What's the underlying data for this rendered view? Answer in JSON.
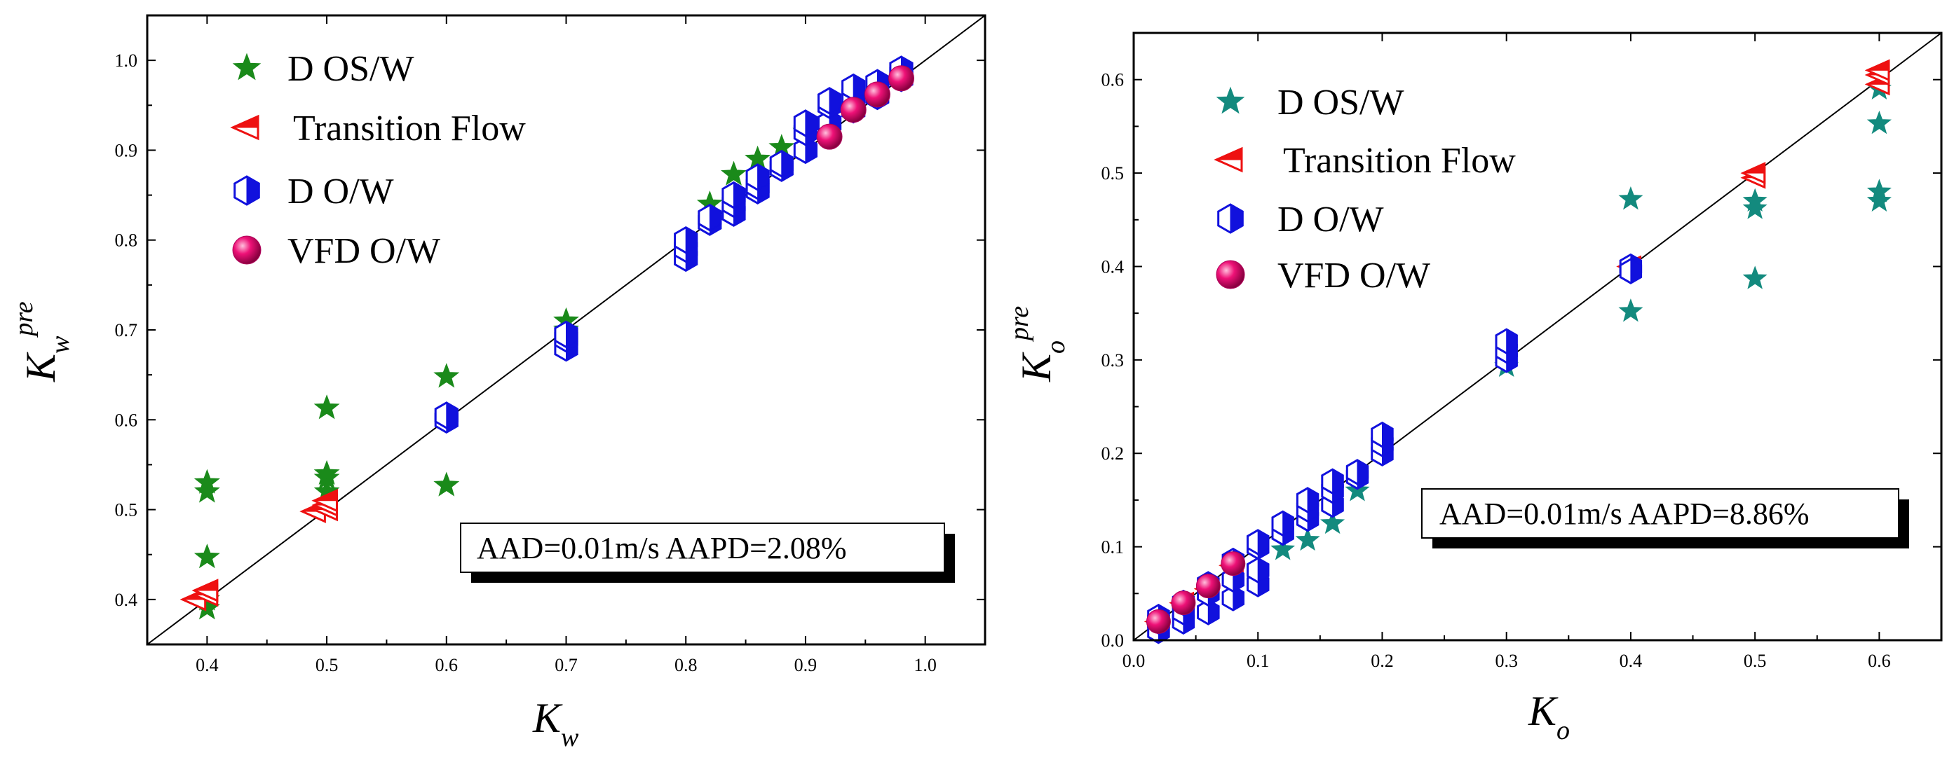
{
  "chart_data": [
    {
      "type": "scatter",
      "xlabel": "K_w",
      "ylabel": "K_w^pre",
      "axis_symbol": "K",
      "axis_subscript": "w",
      "ylabel_superscript": "pre",
      "xlim": [
        0.35,
        1.05
      ],
      "ylim": [
        0.35,
        1.05
      ],
      "xticks": [
        "0.4",
        "0.5",
        "0.6",
        "0.7",
        "0.8",
        "0.9",
        "1.0"
      ],
      "yticks": [
        "0.4",
        "0.5",
        "0.6",
        "0.7",
        "0.8",
        "0.9",
        "1.0"
      ],
      "stats_text": "AAD=0.01m/s  AAPD=2.08%",
      "series": [
        {
          "name": "D OS/W",
          "marker": "star",
          "color": "#1a8a1a",
          "points": [
            [
              0.4,
              0.39
            ],
            [
              0.4,
              0.4
            ],
            [
              0.4,
              0.447
            ],
            [
              0.4,
              0.52
            ],
            [
              0.4,
              0.53
            ],
            [
              0.5,
              0.52
            ],
            [
              0.5,
              0.535
            ],
            [
              0.5,
              0.54
            ],
            [
              0.5,
              0.613
            ],
            [
              0.6,
              0.527
            ],
            [
              0.6,
              0.648
            ],
            [
              0.7,
              0.7
            ],
            [
              0.7,
              0.71
            ],
            [
              0.82,
              0.84
            ],
            [
              0.84,
              0.873
            ],
            [
              0.86,
              0.89
            ],
            [
              0.88,
              0.903
            ],
            [
              0.9,
              0.92
            ]
          ]
        },
        {
          "name": "Transition Flow",
          "marker": "triangle-left",
          "color": "#ee1111",
          "points": [
            [
              0.39,
              0.4
            ],
            [
              0.4,
              0.405
            ],
            [
              0.4,
              0.41
            ],
            [
              0.4,
              0.41
            ],
            [
              0.49,
              0.498
            ],
            [
              0.5,
              0.5
            ],
            [
              0.5,
              0.505
            ],
            [
              0.5,
              0.51
            ]
          ]
        },
        {
          "name": "D O/W",
          "marker": "hexagon",
          "color": "#1111dd",
          "points": [
            [
              0.6,
              0.6
            ],
            [
              0.6,
              0.605
            ],
            [
              0.7,
              0.68
            ],
            [
              0.7,
              0.69
            ],
            [
              0.7,
              0.695
            ],
            [
              0.8,
              0.78
            ],
            [
              0.8,
              0.79
            ],
            [
              0.8,
              0.8
            ],
            [
              0.82,
              0.82
            ],
            [
              0.82,
              0.825
            ],
            [
              0.84,
              0.83
            ],
            [
              0.84,
              0.84
            ],
            [
              0.84,
              0.85
            ],
            [
              0.86,
              0.855
            ],
            [
              0.86,
              0.86
            ],
            [
              0.86,
              0.87
            ],
            [
              0.88,
              0.88
            ],
            [
              0.88,
              0.885
            ],
            [
              0.9,
              0.9
            ],
            [
              0.9,
              0.92
            ],
            [
              0.9,
              0.93
            ],
            [
              0.92,
              0.93
            ],
            [
              0.92,
              0.95
            ],
            [
              0.92,
              0.955
            ],
            [
              0.94,
              0.945
            ],
            [
              0.94,
              0.96
            ],
            [
              0.94,
              0.97
            ],
            [
              0.96,
              0.96
            ],
            [
              0.96,
              0.975
            ],
            [
              0.98,
              0.98
            ],
            [
              0.98,
              0.985
            ],
            [
              0.98,
              0.99
            ]
          ]
        },
        {
          "name": "VFD O/W",
          "marker": "sphere",
          "color": "#ee1177",
          "points": [
            [
              0.92,
              0.915
            ],
            [
              0.94,
              0.945
            ],
            [
              0.96,
              0.962
            ],
            [
              0.98,
              0.98
            ]
          ]
        }
      ]
    },
    {
      "type": "scatter",
      "xlabel": "K_o",
      "ylabel": "K_o^pre",
      "axis_symbol": "K",
      "axis_subscript": "o",
      "ylabel_superscript": "pre",
      "xlim": [
        0.0,
        0.65
      ],
      "ylim": [
        0.0,
        0.65
      ],
      "xticks": [
        "0.0",
        "0.1",
        "0.2",
        "0.3",
        "0.4",
        "0.5",
        "0.6"
      ],
      "yticks": [
        "0.0",
        "0.1",
        "0.2",
        "0.3",
        "0.4",
        "0.5",
        "0.6"
      ],
      "stats_text": "AAD=0.01m/s  AAPD=8.86%",
      "series": [
        {
          "name": "D OS/W",
          "marker": "star",
          "color": "#138a7e",
          "points": [
            [
              0.12,
              0.097
            ],
            [
              0.14,
              0.107
            ],
            [
              0.16,
              0.125
            ],
            [
              0.18,
              0.16
            ],
            [
              0.3,
              0.293
            ],
            [
              0.4,
              0.352
            ],
            [
              0.4,
              0.472
            ],
            [
              0.5,
              0.387
            ],
            [
              0.5,
              0.462
            ],
            [
              0.5,
              0.47
            ],
            [
              0.6,
              0.47
            ],
            [
              0.6,
              0.48
            ],
            [
              0.6,
              0.553
            ],
            [
              0.6,
              0.59
            ]
          ]
        },
        {
          "name": "Transition Flow",
          "marker": "triangle-left",
          "color": "#ee1111",
          "points": [
            [
              0.02,
              0.02
            ],
            [
              0.04,
              0.04
            ],
            [
              0.06,
              0.055
            ],
            [
              0.08,
              0.08
            ],
            [
              0.4,
              0.4
            ],
            [
              0.5,
              0.495
            ],
            [
              0.5,
              0.5
            ],
            [
              0.6,
              0.595
            ],
            [
              0.6,
              0.605
            ],
            [
              0.6,
              0.61
            ]
          ]
        },
        {
          "name": "D O/W",
          "marker": "hexagon",
          "color": "#1111dd",
          "points": [
            [
              0.02,
              0.01
            ],
            [
              0.02,
              0.02
            ],
            [
              0.02,
              0.025
            ],
            [
              0.04,
              0.02
            ],
            [
              0.04,
              0.03
            ],
            [
              0.04,
              0.04
            ],
            [
              0.06,
              0.03
            ],
            [
              0.06,
              0.05
            ],
            [
              0.06,
              0.06
            ],
            [
              0.08,
              0.045
            ],
            [
              0.08,
              0.065
            ],
            [
              0.08,
              0.085
            ],
            [
              0.1,
              0.06
            ],
            [
              0.1,
              0.075
            ],
            [
              0.1,
              0.1
            ],
            [
              0.1,
              0.105
            ],
            [
              0.12,
              0.115
            ],
            [
              0.12,
              0.125
            ],
            [
              0.14,
              0.13
            ],
            [
              0.14,
              0.14
            ],
            [
              0.14,
              0.15
            ],
            [
              0.16,
              0.145
            ],
            [
              0.16,
              0.16
            ],
            [
              0.16,
              0.17
            ],
            [
              0.18,
              0.175
            ],
            [
              0.18,
              0.18
            ],
            [
              0.2,
              0.2
            ],
            [
              0.2,
              0.21
            ],
            [
              0.2,
              0.22
            ],
            [
              0.3,
              0.3
            ],
            [
              0.3,
              0.31
            ],
            [
              0.3,
              0.32
            ],
            [
              0.4,
              0.4
            ],
            [
              0.4,
              0.395
            ]
          ]
        },
        {
          "name": "VFD O/W",
          "marker": "sphere",
          "color": "#ee1177",
          "points": [
            [
              0.02,
              0.02
            ],
            [
              0.04,
              0.04
            ],
            [
              0.06,
              0.058
            ],
            [
              0.08,
              0.082
            ]
          ]
        }
      ]
    }
  ]
}
